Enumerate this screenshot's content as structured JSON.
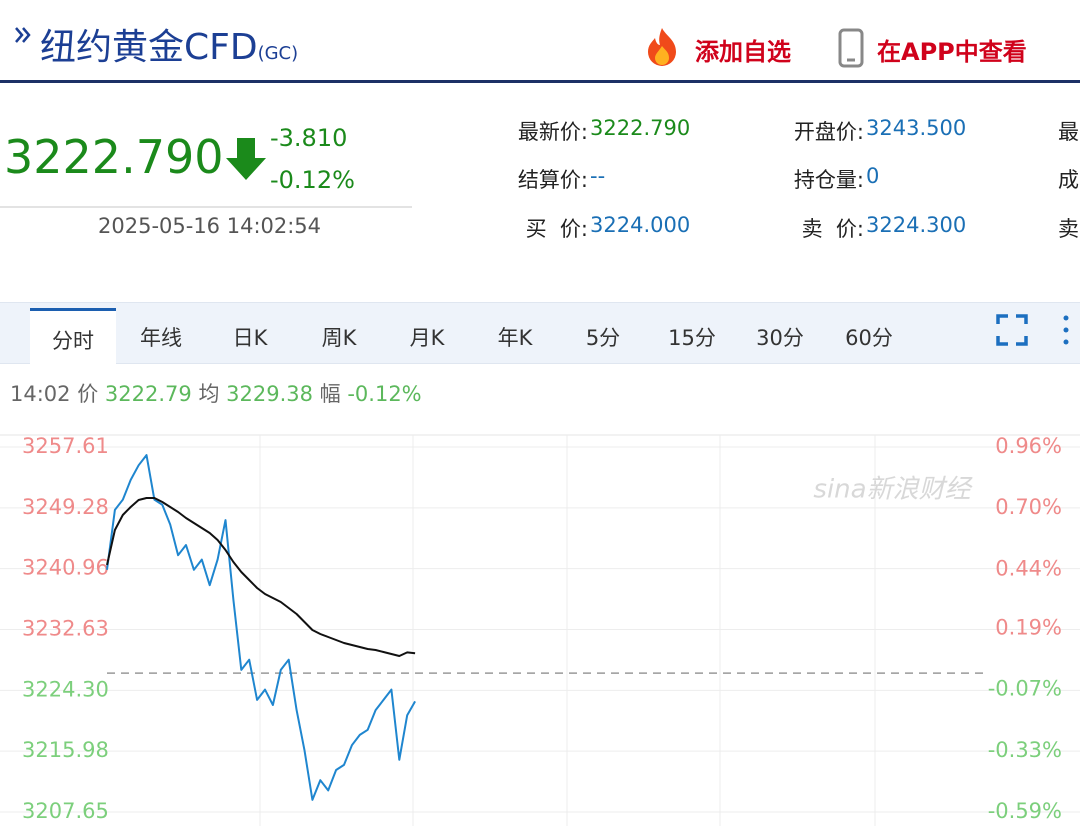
{
  "header": {
    "title": "纽约黄金CFD",
    "code": "(GC)",
    "actions": [
      "添加自选",
      "在APP中查看"
    ]
  },
  "quote": {
    "price": "3222.790",
    "change": "-3.810",
    "change_pct": "-0.12%",
    "time": "2025-05-16 14:02:54",
    "fields": [
      [
        {
          "label": "最新价:",
          "value": "3222.790"
        },
        {
          "label": "开盘价:",
          "value": "3243.500"
        },
        {
          "label": "最"
        }
      ],
      [
        {
          "label": "结算价:",
          "value": "--"
        },
        {
          "label": "持仓量:",
          "value": "0"
        },
        {
          "label": "成"
        }
      ],
      [
        {
          "label": "买  价:",
          "value": "3224.000"
        },
        {
          "label": "卖  价:",
          "value": "3224.300"
        },
        {
          "label": "卖"
        }
      ]
    ]
  },
  "tabs": [
    "分时",
    "年线",
    "日K",
    "周K",
    "月K",
    "年K",
    "5分",
    "15分",
    "30分",
    "60分"
  ],
  "chart_info": {
    "time": "14:02",
    "price_label": "价",
    "price": "3222.79",
    "avg_label": "均",
    "avg": "3229.38",
    "pct_label": "幅",
    "pct": "-0.12%"
  },
  "chart_data": {
    "type": "line",
    "watermark": "sina新浪财经",
    "series": [
      {
        "color": "#1f86cf",
        "values": [
          3240.8,
          3249.0,
          3250.4,
          3253.1,
          3255.1,
          3256.5,
          3250.4,
          3249.7,
          3247.0,
          3242.8,
          3244.2,
          3240.8,
          3242.2,
          3238.7,
          3242.2,
          3247.6,
          3236.7,
          3227.1,
          3228.5,
          3223.0,
          3224.4,
          3222.3,
          3227.1,
          3228.5,
          3221.6,
          3216.1,
          3209.3,
          3212.0,
          3210.6,
          3213.4,
          3214.1,
          3216.8,
          3218.2,
          3218.9,
          3221.6,
          3223.0,
          3224.4,
          3214.8,
          3220.9,
          3222.79
        ]
      },
      {
        "color": "#111111",
        "values": [
          3241.46,
          3246.25,
          3248.3,
          3249.4,
          3250.36,
          3250.63,
          3250.63,
          3250.08,
          3249.4,
          3248.71,
          3247.89,
          3247.21,
          3246.52,
          3245.84,
          3244.88,
          3243.51,
          3241.87,
          3240.5,
          3239.4,
          3238.31,
          3237.49,
          3236.94,
          3236.39,
          3235.57,
          3234.75,
          3233.66,
          3232.56,
          3232.01,
          3231.6,
          3231.19,
          3230.78,
          3230.51,
          3230.23,
          3229.96,
          3229.82,
          3229.55,
          3229.28,
          3229.0,
          3229.5,
          3229.38
        ]
      }
    ],
    "ylim": [
      3207.65,
      3257.61
    ],
    "yticks": [
      3257.61,
      3249.28,
      3240.96,
      3232.63,
      {
        "value": 3224.3,
        "label": "3224.30"
      },
      3215.98,
      3207.65
    ],
    "y2lim": [
      -0.59,
      0.96
    ],
    "y2ticks": [
      {
        "value": 0.96,
        "label": "0.96%"
      },
      {
        "value": 0.7,
        "label": "0.70%"
      },
      {
        "value": 0.44,
        "label": "0.44%"
      },
      {
        "value": 0.19,
        "label": "0.19%"
      },
      {
        "value": -0.07,
        "label": "-0.07%"
      },
      {
        "value": -0.33,
        "label": "-0.33%"
      },
      {
        "value": -0.59,
        "label": "-0.59%"
      }
    ],
    "grid": true
  }
}
